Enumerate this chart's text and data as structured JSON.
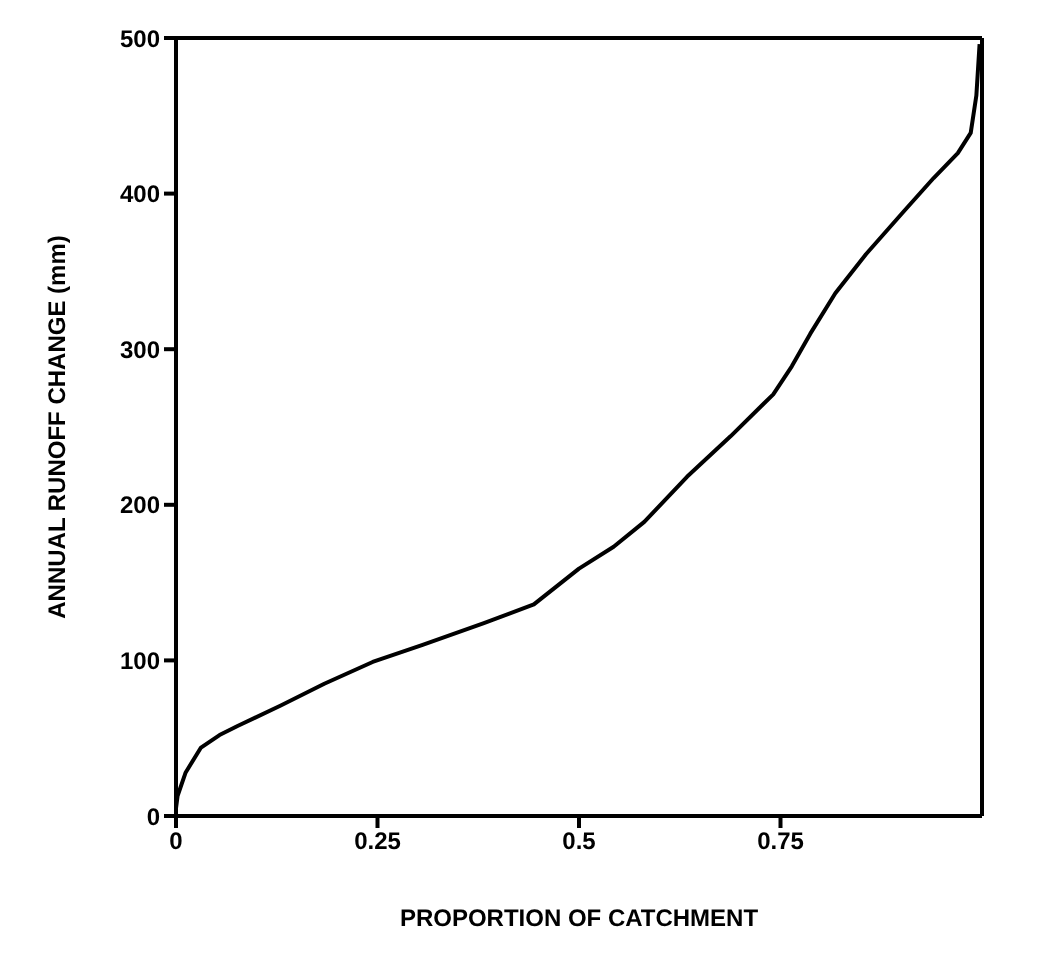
{
  "chart_data": {
    "type": "line",
    "xlabel": "PROPORTION OF CATCHMENT",
    "ylabel": "ANNUAL RUNOFF CHANGE (mm)",
    "x": [
      0,
      0.002,
      0.012,
      0.031,
      0.054,
      0.077,
      0.13,
      0.184,
      0.244,
      0.306,
      0.382,
      0.444,
      0.5,
      0.543,
      0.581,
      0.634,
      0.688,
      0.741,
      0.764,
      0.787,
      0.818,
      0.856,
      0.902,
      0.94,
      0.97,
      0.986,
      0.993,
      0.997
    ],
    "series": [
      {
        "color": "#000000",
        "values": [
          5,
          13,
          28,
          44,
          52,
          58,
          71,
          85,
          99,
          110,
          124,
          136,
          159,
          173,
          189,
          218,
          244,
          271,
          289,
          310,
          336,
          361,
          388,
          410,
          426,
          439,
          463,
          496
        ]
      }
    ],
    "xlim": [
      0,
      1
    ],
    "xticks": [
      0,
      0.25,
      0.5,
      0.75
    ],
    "ylim": [
      0,
      500
    ],
    "yticks": [
      0,
      100,
      200,
      300,
      400,
      500
    ],
    "grid": false,
    "legend": false,
    "marker": "none",
    "line_style": "solid"
  }
}
